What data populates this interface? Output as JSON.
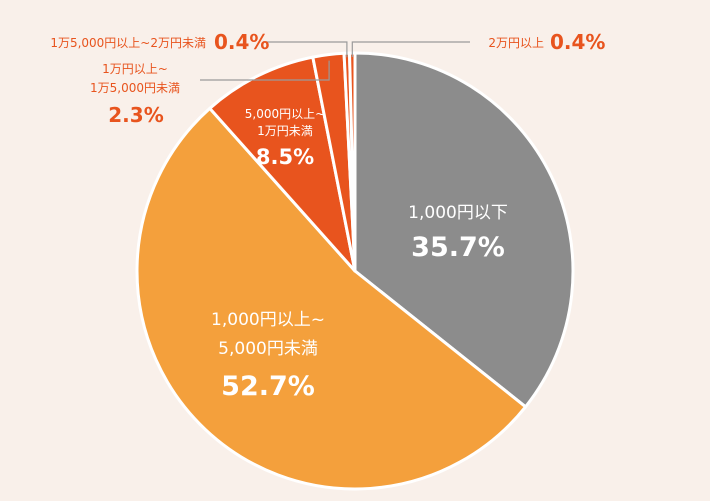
{
  "chart_data": {
    "type": "pie",
    "colors": {
      "background": "#f9f0ea",
      "grey": "#8c8c8c",
      "light_orange": "#f4a03c",
      "dark_orange": "#e8541e",
      "leader": "#9a9a9a"
    },
    "slices": [
      {
        "label_lines": [
          "1,000円以下"
        ],
        "value": 35.7,
        "value_text": "35.7%",
        "color": "#8c8c8c"
      },
      {
        "label_lines": [
          "1,000円以上~",
          "5,000円未満"
        ],
        "value": 52.7,
        "value_text": "52.7%",
        "color": "#f4a03c"
      },
      {
        "label_lines": [
          "5,000円以上~",
          "1万円未満"
        ],
        "value": 8.5,
        "value_text": "8.5%",
        "color": "#e8541e"
      },
      {
        "label_lines": [
          "1万円以上~",
          "1万5,000円未満"
        ],
        "value": 2.3,
        "value_text": "2.3%",
        "color": "#e8541e"
      },
      {
        "label_lines": [
          "1万5,000円以上~2万円未満"
        ],
        "value": 0.4,
        "value_text": "0.4%",
        "color": "#e8541e"
      },
      {
        "label_lines": [
          "2万円以上"
        ],
        "value": 0.4,
        "value_text": "0.4%",
        "color": "#e8541e"
      }
    ]
  }
}
